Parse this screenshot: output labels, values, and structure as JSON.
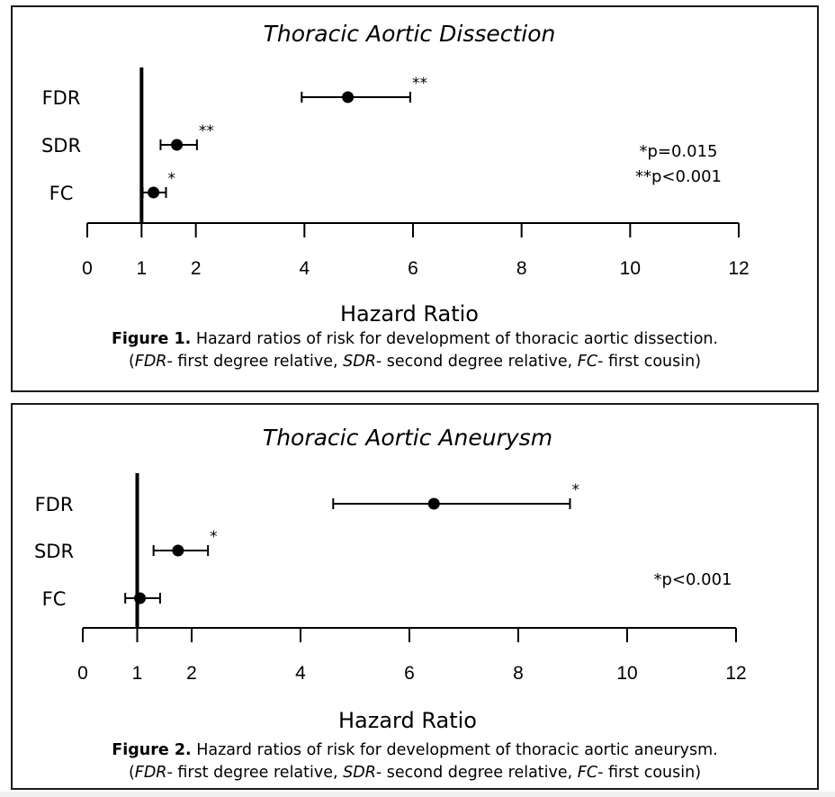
{
  "chart_data": [
    {
      "type": "forest",
      "title": "Thoracic Aortic Dissection",
      "xlabel": "Hazard Ratio",
      "xlim": [
        0,
        12
      ],
      "xticks": [
        0,
        1,
        2,
        4,
        6,
        8,
        10,
        12
      ],
      "reference_line": 1,
      "categories": [
        "FDR",
        "SDR",
        "FC"
      ],
      "estimates": [
        4.8,
        1.65,
        1.22
      ],
      "ci_lower": [
        3.95,
        1.35,
        1.02
      ],
      "ci_upper": [
        5.95,
        2.02,
        1.45
      ],
      "significance": [
        "**",
        "**",
        "*"
      ],
      "notes": [
        "*p=0.015",
        "**p<0.001"
      ],
      "caption_bold": "Figure 1.",
      "caption_text": " Hazard ratios of risk for development of thoracic aortic dissection.",
      "caption_line2": {
        "open": "(",
        "fdr_abbr": "FDR",
        "fdr_def": "- first degree relative, ",
        "sdr_abbr": "SDR",
        "sdr_def": "- second degree relative, ",
        "fc_abbr": "FC",
        "fc_def": "- first cousin)"
      }
    },
    {
      "type": "forest",
      "title": "Thoracic Aortic Aneurysm",
      "xlabel": "Hazard Ratio",
      "xlim": [
        0,
        12
      ],
      "xticks": [
        0,
        1,
        2,
        4,
        6,
        8,
        10,
        12
      ],
      "reference_line": 1,
      "categories": [
        "FDR",
        "SDR",
        "FC"
      ],
      "estimates": [
        6.45,
        1.75,
        1.05
      ],
      "ci_lower": [
        4.6,
        1.3,
        0.78
      ],
      "ci_upper": [
        8.95,
        2.3,
        1.42
      ],
      "significance": [
        "*",
        "*",
        ""
      ],
      "notes": [
        "*p<0.001"
      ],
      "caption_bold": "Figure 2.",
      "caption_text": " Hazard ratios of risk for development of thoracic aortic aneurysm.",
      "caption_line2": {
        "open": "(",
        "fdr_abbr": "FDR",
        "fdr_def": "- first degree relative, ",
        "sdr_abbr": "SDR",
        "sdr_def": "- second degree relative, ",
        "fc_abbr": "FC",
        "fc_def": "- first cousin)"
      }
    }
  ]
}
